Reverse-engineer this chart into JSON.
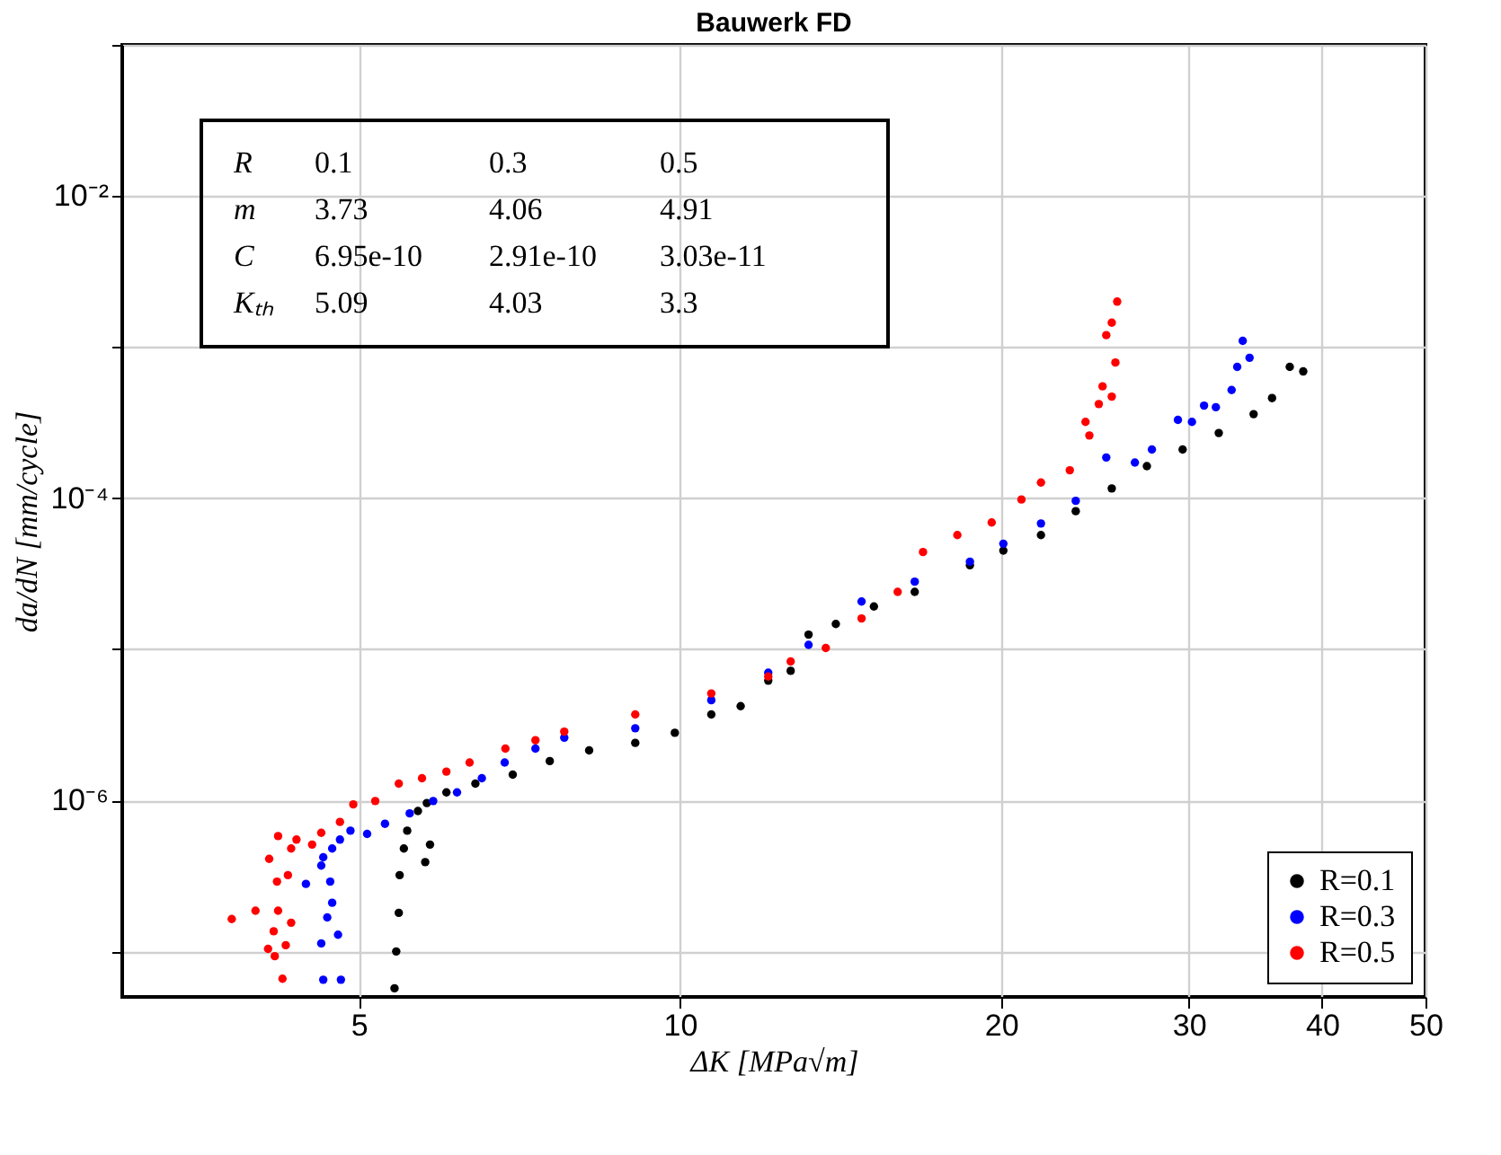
{
  "chart_data": {
    "type": "scatter",
    "title": "Bauwerk FD",
    "xlabel": "ΔK [MPa√m]",
    "ylabel": "da/dN [mm/cycle]",
    "log": "xy",
    "grid": true,
    "legend": "bottom right",
    "marker": "circle",
    "xlim": [
      3,
      50
    ],
    "ylim": [
      5e-08,
      0.1
    ],
    "xticks": [
      5,
      10,
      20,
      30,
      40,
      50
    ],
    "yticks": [
      {
        "value": 1e-07,
        "label": null
      },
      {
        "value": 1e-06,
        "label": "10⁻⁶"
      },
      {
        "value": 1e-05,
        "label": null
      },
      {
        "value": 0.0001,
        "label": "10⁻⁴"
      },
      {
        "value": 0.001,
        "label": null
      },
      {
        "value": 0.01,
        "label": "10⁻²"
      },
      {
        "value": 0.1,
        "label": null
      }
    ],
    "annotations": [
      "R 0.1 0.3 0.5",
      "m 3.73 4.06 4.91",
      "C 6.95e-10 2.91e-10 3.03e-11",
      "Kₜₕ 5.09 4.03 3.3"
    ],
    "series": [
      {
        "name": "R=0.1",
        "color": "#000000",
        "x": [
          5.4,
          5.42,
          5.45,
          5.46,
          5.51,
          5.55,
          5.68,
          5.79,
          5.77,
          5.83,
          6.04,
          6.43,
          6.97,
          7.55,
          8.22,
          9.08,
          9.89,
          10.7,
          11.4,
          12.1,
          12.7,
          13.2,
          14.0,
          15.2,
          16.6,
          18.7,
          20.1,
          21.8,
          23.5,
          25.4,
          27.4,
          29.6,
          32.0,
          34.5,
          35.9,
          37.3,
          38.4
        ],
        "values": [
          5.7e-08,
          1e-07,
          1.8e-07,
          3.2e-07,
          4.8e-07,
          6.3e-07,
          8.5e-07,
          9.6e-07,
          3.9e-07,
          5.1e-07,
          1.13e-06,
          1.29e-06,
          1.48e-06,
          1.82e-06,
          2.14e-06,
          2.4e-06,
          2.8e-06,
          3.7e-06,
          4.2e-06,
          6.2e-06,
          7.2e-06,
          1.25e-05,
          1.47e-05,
          1.92e-05,
          2.4e-05,
          3.6e-05,
          4.5e-05,
          5.7e-05,
          8.2e-05,
          0.000116,
          0.000163,
          0.00021,
          0.00027,
          0.00036,
          0.00046,
          0.00074,
          0.00069
        ]
      },
      {
        "name": "R=0.3",
        "color": "#0000ff",
        "x": [
          4.63,
          4.81,
          4.61,
          4.78,
          4.67,
          4.72,
          4.46,
          4.7,
          4.61,
          4.63,
          4.72,
          4.8,
          4.91,
          5.09,
          5.29,
          5.58,
          5.87,
          6.18,
          6.52,
          6.85,
          7.32,
          7.79,
          9.08,
          10.7,
          12.1,
          13.2,
          14.8,
          16.6,
          18.7,
          20.1,
          21.8,
          23.5,
          25.1,
          26.7,
          27.7,
          29.3,
          30.2,
          31.0,
          31.8,
          32.9,
          33.3,
          33.7,
          34.2
        ],
        "values": [
          6.5e-08,
          6.5e-08,
          1.13e-07,
          1.29e-07,
          1.68e-07,
          2.1e-07,
          2.8e-07,
          2.9e-07,
          3.7e-07,
          4.2e-07,
          4.8e-07,
          5.5e-07,
          6.3e-07,
          6e-07,
          7e-07,
          8.2e-07,
          9.9e-07,
          1.13e-06,
          1.4e-06,
          1.78e-06,
          2.2e-06,
          2.6e-06,
          3e-06,
          4.6e-06,
          7e-06,
          1.07e-05,
          2.07e-05,
          2.8e-05,
          3.8e-05,
          5e-05,
          6.8e-05,
          9.6e-05,
          0.000186,
          0.000172,
          0.00021,
          0.00033,
          0.00032,
          0.00041,
          0.0004,
          0.00052,
          0.00074,
          0.0011,
          0.00085
        ]
      },
      {
        "name": "R=0.5",
        "color": "#ff0000",
        "x": [
          3.8,
          4.0,
          4.16,
          4.11,
          4.17,
          4.24,
          4.27,
          4.2,
          4.32,
          4.19,
          4.29,
          4.12,
          4.32,
          4.2,
          4.37,
          4.52,
          4.61,
          4.8,
          4.94,
          5.18,
          5.45,
          5.73,
          6.04,
          6.35,
          6.86,
          7.32,
          7.79,
          9.08,
          10.7,
          12.1,
          12.7,
          13.7,
          14.8,
          16.0,
          16.9,
          18.2,
          19.6,
          20.9,
          21.8,
          23.2,
          24.0,
          24.2,
          24.7,
          24.9,
          25.4,
          25.6,
          25.1,
          25.4,
          25.7
        ],
        "values": [
          1.64e-07,
          1.86e-07,
          1.36e-07,
          1.04e-07,
          9.3e-08,
          6.6e-08,
          1.1e-07,
          1.86e-07,
          1.55e-07,
          2.9e-07,
          3.2e-07,
          4.1e-07,
          4.8e-07,
          5.8e-07,
          5.5e-07,
          5.1e-07,
          6.1e-07,
          7.2e-07,
          9.4e-07,
          9.9e-07,
          1.29e-06,
          1.4e-06,
          1.55e-06,
          1.78e-06,
          2.2e-06,
          2.5e-06,
          2.85e-06,
          3.7e-06,
          5.1e-06,
          6.6e-06,
          8.3e-06,
          1.02e-05,
          1.6e-05,
          2.4e-05,
          4.4e-05,
          5.7e-05,
          6.9e-05,
          9.8e-05,
          0.000127,
          0.000153,
          0.00032,
          0.00026,
          0.00042,
          0.00055,
          0.00047,
          0.00079,
          0.0012,
          0.00145,
          0.002
        ]
      }
    ]
  }
}
